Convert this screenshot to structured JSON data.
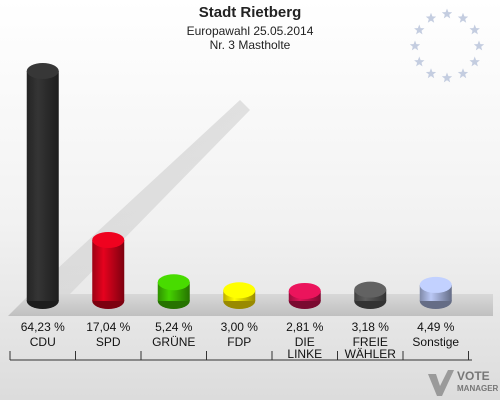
{
  "header": {
    "title": "Stadt Rietberg",
    "subtitle": "Europawahl 25.05.2014",
    "district": "Nr. 3 Mastholte"
  },
  "brand": {
    "line1": "VOTE",
    "line2": "MANAGER"
  },
  "chart_data": {
    "type": "bar",
    "title": "Stadt Rietberg",
    "categories": [
      "CDU",
      "SPD",
      "GRÜNE",
      "FDP",
      "DIE LINKE",
      "FREIE WÄHLER",
      "Sonstige"
    ],
    "category_lines": [
      [
        "CDU"
      ],
      [
        "SPD"
      ],
      [
        "GRÜNE"
      ],
      [
        "FDP"
      ],
      [
        "DIE",
        "LINKE"
      ],
      [
        "FREIE",
        "WÄHLER"
      ],
      [
        "Sonstige"
      ]
    ],
    "values": [
      64.23,
      17.04,
      5.24,
      3.0,
      2.81,
      3.18,
      4.49
    ],
    "value_labels": [
      "64,23 %",
      "17,04 %",
      "5,24 %",
      "3,00 %",
      "2,81 %",
      "3,18 %",
      "4,49 %"
    ],
    "colors": [
      "#303030",
      "#d0021b",
      "#3fbf00",
      "#ffe600",
      "#cc1150",
      "#555555",
      "#a9b6e0"
    ],
    "unit": "%",
    "ylim": [
      0,
      64.23
    ],
    "grid": false
  }
}
